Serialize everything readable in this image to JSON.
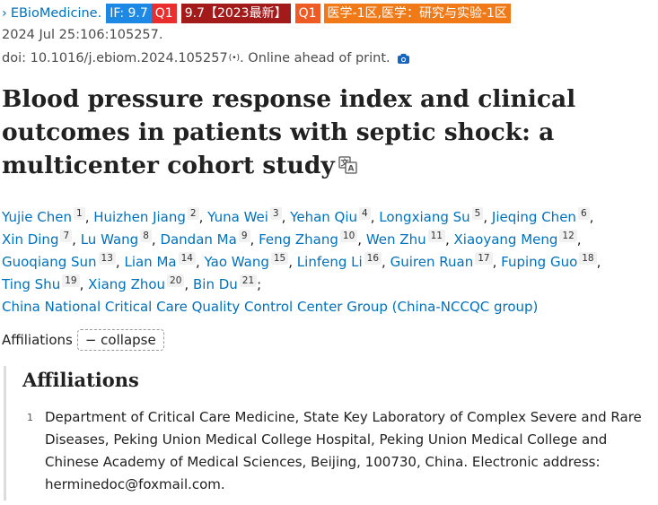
{
  "header": {
    "journal": "EBioMedicine.",
    "badges": {
      "if": "IF: 9.7",
      "q1": "Q1",
      "if_new": "9.7【2023最新】",
      "q1_b": "Q1",
      "cas": "医学-1区,医学：研究与实验-1区"
    }
  },
  "citation": {
    "date_line": "2024 Jul 25:106:105257.",
    "doi_line": "doi: 10.1016/j.ebiom.2024.105257",
    "signal": "(•)",
    "status": ". Online ahead of print."
  },
  "article": {
    "title": "Blood pressure response index and clinical outcomes in patients with septic shock: a multicenter cohort study"
  },
  "authors": [
    {
      "name": "Yujie Chen",
      "aff": "1"
    },
    {
      "name": "Huizhen Jiang",
      "aff": "2"
    },
    {
      "name": "Yuna Wei",
      "aff": "3"
    },
    {
      "name": "Yehan Qiu",
      "aff": "4"
    },
    {
      "name": "Longxiang Su",
      "aff": "5"
    },
    {
      "name": "Jieqing Chen",
      "aff": "6"
    },
    {
      "name": "Xin Ding",
      "aff": "7"
    },
    {
      "name": "Lu Wang",
      "aff": "8"
    },
    {
      "name": "Dandan Ma",
      "aff": "9"
    },
    {
      "name": "Feng Zhang",
      "aff": "10"
    },
    {
      "name": "Wen Zhu",
      "aff": "11"
    },
    {
      "name": "Xiaoyang Meng",
      "aff": "12"
    },
    {
      "name": "Guoqiang Sun",
      "aff": "13"
    },
    {
      "name": "Lian Ma",
      "aff": "14"
    },
    {
      "name": "Yao Wang",
      "aff": "15"
    },
    {
      "name": "Linfeng Li",
      "aff": "16"
    },
    {
      "name": "Guiren Ruan",
      "aff": "17"
    },
    {
      "name": "Fuping Guo",
      "aff": "18"
    },
    {
      "name": "Ting Shu",
      "aff": "19"
    },
    {
      "name": "Xiang Zhou",
      "aff": "20"
    },
    {
      "name": "Bin Du",
      "aff": "21"
    }
  ],
  "group": "China National Critical Care Quality Control Center Group (China-NCCQC group)",
  "affiliations": {
    "toggle_label": "Affiliations",
    "collapse_label": "− collapse",
    "heading": "Affiliations",
    "items": [
      {
        "num": "1",
        "text": "Department of Critical Care Medicine, State Key Laboratory of Complex Severe and Rare Diseases, Peking Union Medical College Hospital, Peking Union Medical College and Chinese Academy of Medical Sciences, Beijing, 100730, China. Electronic address: herminedoc@foxmail.com."
      }
    ]
  },
  "icons": {
    "journal": "chevron-right-icon",
    "signal": "signal-icon",
    "camera": "camera-icon",
    "translate": "translate-icon"
  }
}
